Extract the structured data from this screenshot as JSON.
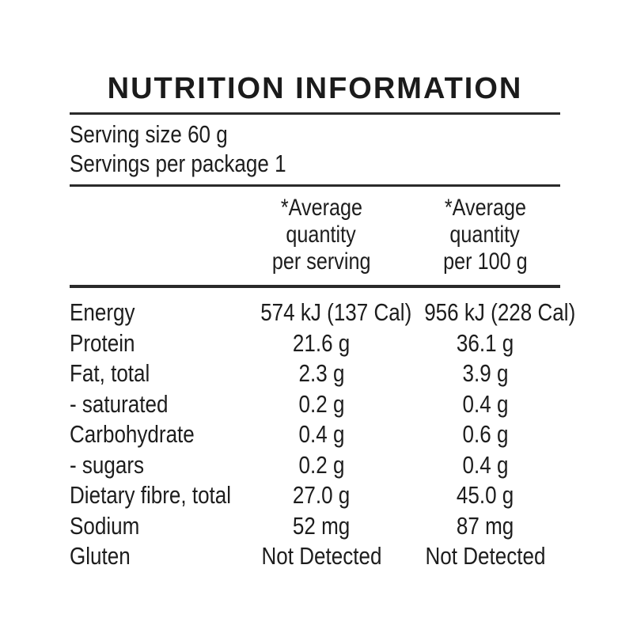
{
  "panel": {
    "title": "NUTRITION INFORMATION",
    "serving_size": "Serving size 60 g",
    "servings_per_package": "Servings per package 1",
    "columns": {
      "per_serving": [
        "*Average",
        "quantity",
        "per serving"
      ],
      "per_100g": [
        "*Average",
        "quantity",
        "per 100 g"
      ]
    },
    "rows": [
      {
        "nutrient": "Energy",
        "per_serving": "574 kJ (137 Cal)",
        "per_100g": "956 kJ (228 Cal)"
      },
      {
        "nutrient": "Protein",
        "per_serving": "21.6 g",
        "per_100g": "36.1 g"
      },
      {
        "nutrient": "Fat, total",
        "per_serving": "2.3 g",
        "per_100g": "3.9 g"
      },
      {
        "nutrient": "- saturated",
        "per_serving": "0.2 g",
        "per_100g": "0.4 g"
      },
      {
        "nutrient": "Carbohydrate",
        "per_serving": "0.4 g",
        "per_100g": "0.6 g"
      },
      {
        "nutrient": "- sugars",
        "per_serving": "0.2 g",
        "per_100g": "0.4 g"
      },
      {
        "nutrient": "Dietary fibre, total",
        "per_serving": "27.0 g",
        "per_100g": "45.0 g"
      },
      {
        "nutrient": "Sodium",
        "per_serving": "52 mg",
        "per_100g": "87 mg"
      },
      {
        "nutrient": "Gluten",
        "per_serving": "Not Detected",
        "per_100g": "Not Detected"
      }
    ],
    "colors": {
      "text": "#1d1d1d",
      "rule": "#2a2a2a",
      "background": "#ffffff"
    }
  }
}
